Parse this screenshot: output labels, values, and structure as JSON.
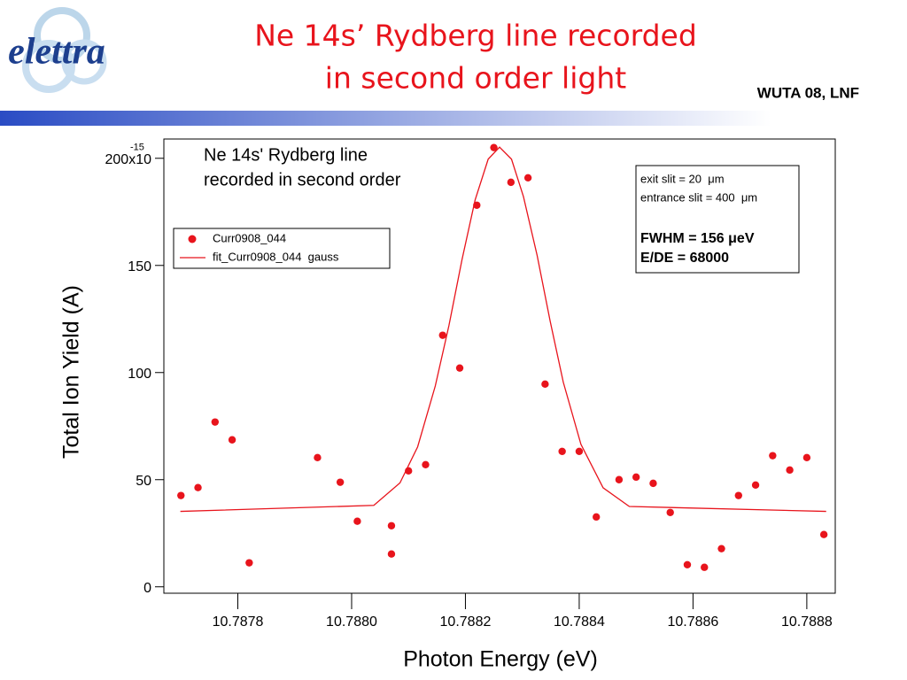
{
  "header": {
    "logo": "elettra",
    "title_lines": [
      "Ne 14s’ Rydberg line recorded",
      "in second order light"
    ],
    "tag": "WUTA 08, LNF"
  },
  "chart_data": {
    "type": "scatter",
    "annotation_lines": [
      "Ne 14s' Rydberg line",
      "recorded in second order"
    ],
    "info_lines": [
      "exit slit = 20  μm",
      "entrance slit = 400  μm"
    ],
    "info_bold_lines": [
      "FWHM = 156 μeV",
      "E/DE = 68000"
    ],
    "x_label": "Photon Energy (eV)",
    "y_label": "Total Ion Yield (A)",
    "xlim": [
      10.78767,
      10.78885
    ],
    "ylim": [
      -3,
      209
    ],
    "xticks": [
      10.7878,
      {
        "value": 10.788,
        "label": "10.7880"
      },
      10.7882,
      10.7884,
      10.7886,
      10.7888
    ],
    "yticks": [
      0,
      50,
      100,
      150,
      {
        "value": 200,
        "label": "200x10"
      }
    ],
    "ytick_exponent": "-15",
    "series": [
      {
        "name": "Curr0908_044",
        "color": "#e8141c",
        "mode": "markers",
        "x": [
          10.7877,
          10.78773,
          10.78776,
          10.78779,
          10.78782,
          10.78794,
          10.78798,
          10.78801,
          10.78807,
          10.78807,
          10.7881,
          10.78813,
          10.78816,
          10.78819,
          10.78822,
          10.78825,
          10.78828,
          10.78831,
          10.78834,
          10.78837,
          10.7884,
          10.78843,
          10.78847,
          10.7885,
          10.78853,
          10.78856,
          10.78859,
          10.78862,
          10.78865,
          10.78868,
          10.78871,
          10.78874,
          10.78877,
          10.7888,
          10.78883
        ],
        "values": [
          42.6,
          46.3,
          76.9,
          68.6,
          11.2,
          60.3,
          48.8,
          30.6,
          28.5,
          15.3,
          54.1,
          57.0,
          117.4,
          102.1,
          178.1,
          205.0,
          188.8,
          190.9,
          94.6,
          63.2,
          63.2,
          32.6,
          50.0,
          51.2,
          48.3,
          34.7,
          10.3,
          9.1,
          17.8,
          42.6,
          47.5,
          61.2,
          54.5,
          60.3,
          24.4
        ]
      },
      {
        "name": "fit_Curr0908_044  gauss",
        "color": "#e8141c",
        "mode": "line",
        "x": [
          10.787699,
          10.788039,
          10.788085,
          10.788116,
          10.788147,
          10.788171,
          10.788194,
          10.788217,
          10.78824,
          10.78826,
          10.788281,
          10.788302,
          10.788326,
          10.788349,
          10.788372,
          10.788403,
          10.788442,
          10.788488,
          10.788834
        ],
        "values": [
          35.2,
          38.0,
          48.5,
          65.3,
          93.7,
          121.9,
          152.7,
          180.5,
          199.6,
          205.2,
          199.6,
          182.1,
          154.7,
          123.9,
          95.5,
          66.5,
          46.2,
          37.5,
          35.2
        ]
      }
    ]
  }
}
